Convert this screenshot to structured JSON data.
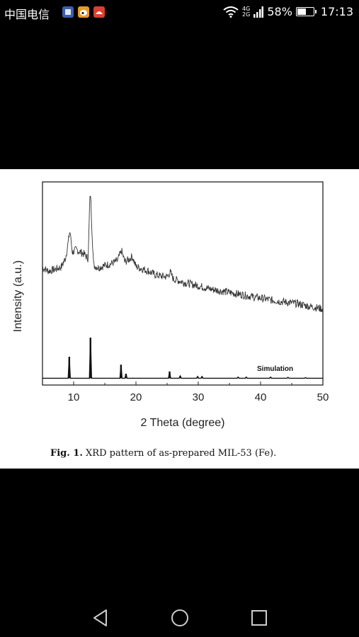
{
  "status_bar": {
    "carrier": "中国电信",
    "network_top": "4G",
    "network_bottom": "2G",
    "battery_percent": "58%",
    "battery_level": 0.58,
    "time": "17:13",
    "notification_icons": [
      "app-notification-icon",
      "weibo-icon",
      "huawei-app-icon"
    ]
  },
  "figure": {
    "caption_label": "Fig. 1.",
    "caption_text": "XRD pattern of as-prepared MIL-53 (Fe)."
  },
  "chart_data": {
    "type": "line",
    "xlabel": "2 Theta (degree)",
    "ylabel": "Intensity (a.u.)",
    "xlim": [
      5,
      50
    ],
    "xticks": [
      10,
      20,
      30,
      40,
      50
    ],
    "yticks_shown": false,
    "annotation": "Simulation",
    "series": [
      {
        "style": "noisy-experimental",
        "x": [
          5,
          6,
          7,
          8,
          8.7,
          9.4,
          9.8,
          10.4,
          11,
          11.7,
          12.3,
          12.7,
          13.2,
          14,
          15,
          16,
          17,
          17.7,
          18.2,
          18.8,
          19.4,
          20,
          21,
          22,
          23,
          24,
          25,
          25.5,
          26,
          28,
          30,
          32,
          34,
          36,
          38,
          40,
          42,
          44,
          46,
          48,
          50
        ],
        "y": [
          20.8,
          20.2,
          20.5,
          20.9,
          22.5,
          27,
          23.5,
          24,
          23.6,
          23.2,
          22.4,
          33.5,
          21.2,
          20.8,
          21.2,
          21.5,
          22.0,
          23.8,
          21.8,
          22.2,
          22.8,
          21.0,
          20.6,
          20.2,
          19.6,
          19.3,
          19.2,
          20.0,
          18.8,
          18.1,
          17.6,
          17.0,
          16.6,
          16.2,
          15.8,
          15.4,
          15.0,
          14.7,
          14.4,
          13.9,
          13.5
        ]
      },
      {
        "name": "Simulation",
        "style": "stick-pattern",
        "peaks": [
          {
            "x": 9.3,
            "y": 3.8
          },
          {
            "x": 12.7,
            "y": 7.2
          },
          {
            "x": 17.6,
            "y": 2.4
          },
          {
            "x": 18.4,
            "y": 0.8
          },
          {
            "x": 25.4,
            "y": 1.2
          },
          {
            "x": 27.1,
            "y": 0.4
          },
          {
            "x": 29.9,
            "y": 0.3
          },
          {
            "x": 30.6,
            "y": 0.3
          },
          {
            "x": 36.4,
            "y": 0.2
          },
          {
            "x": 37.7,
            "y": 0.2
          },
          {
            "x": 41.6,
            "y": 0.2
          },
          {
            "x": 44.4,
            "y": 0.15
          },
          {
            "x": 47.2,
            "y": 0.1
          }
        ]
      }
    ]
  }
}
